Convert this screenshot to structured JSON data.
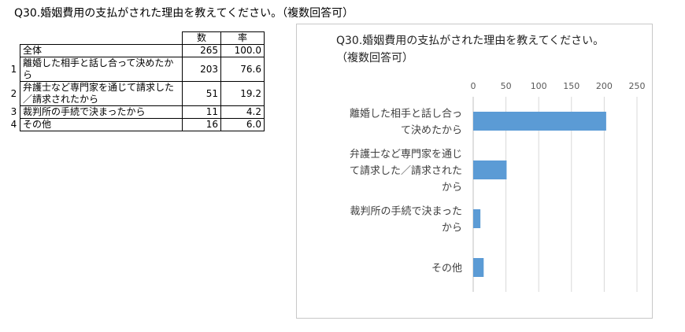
{
  "page_title": "Q30.婚姻費用の支払がされた理由を教えてください。（複数回答可）",
  "table": {
    "headers": [
      "数",
      "率"
    ],
    "total": {
      "label": "全体",
      "n": "265",
      "pct": "100.0"
    },
    "rows": [
      {
        "idx": "1",
        "label": "離婚した相手と話し合って決めたから",
        "n": "203",
        "pct": "76.6"
      },
      {
        "idx": "2",
        "label": "弁護士など専門家を通じて請求した／請求されたから",
        "n": "51",
        "pct": "19.2"
      },
      {
        "idx": "3",
        "label": "裁判所の手続で決まったから",
        "n": "11",
        "pct": "4.2"
      },
      {
        "idx": "4",
        "label": "その他",
        "n": "16",
        "pct": "6.0"
      }
    ]
  },
  "chart_data": {
    "type": "bar",
    "orientation": "horizontal",
    "title": "Q30.婚姻費用の支払がされた理由を教えてください。（複数回答可）",
    "categories": [
      "離婚した相手と話し合って決めたから",
      "弁護士など専門家を通じて請求した／請求されたから",
      "裁判所の手続で決まったから",
      "その他"
    ],
    "values": [
      203,
      51,
      11,
      16
    ],
    "xlim": [
      0,
      250
    ],
    "ticks": [
      "0",
      "50",
      "100",
      "150",
      "200",
      "250"
    ],
    "axis_position": "top",
    "grid": true,
    "bar_color": "#5b9bd5",
    "grid_color": "#d9d9d9"
  }
}
